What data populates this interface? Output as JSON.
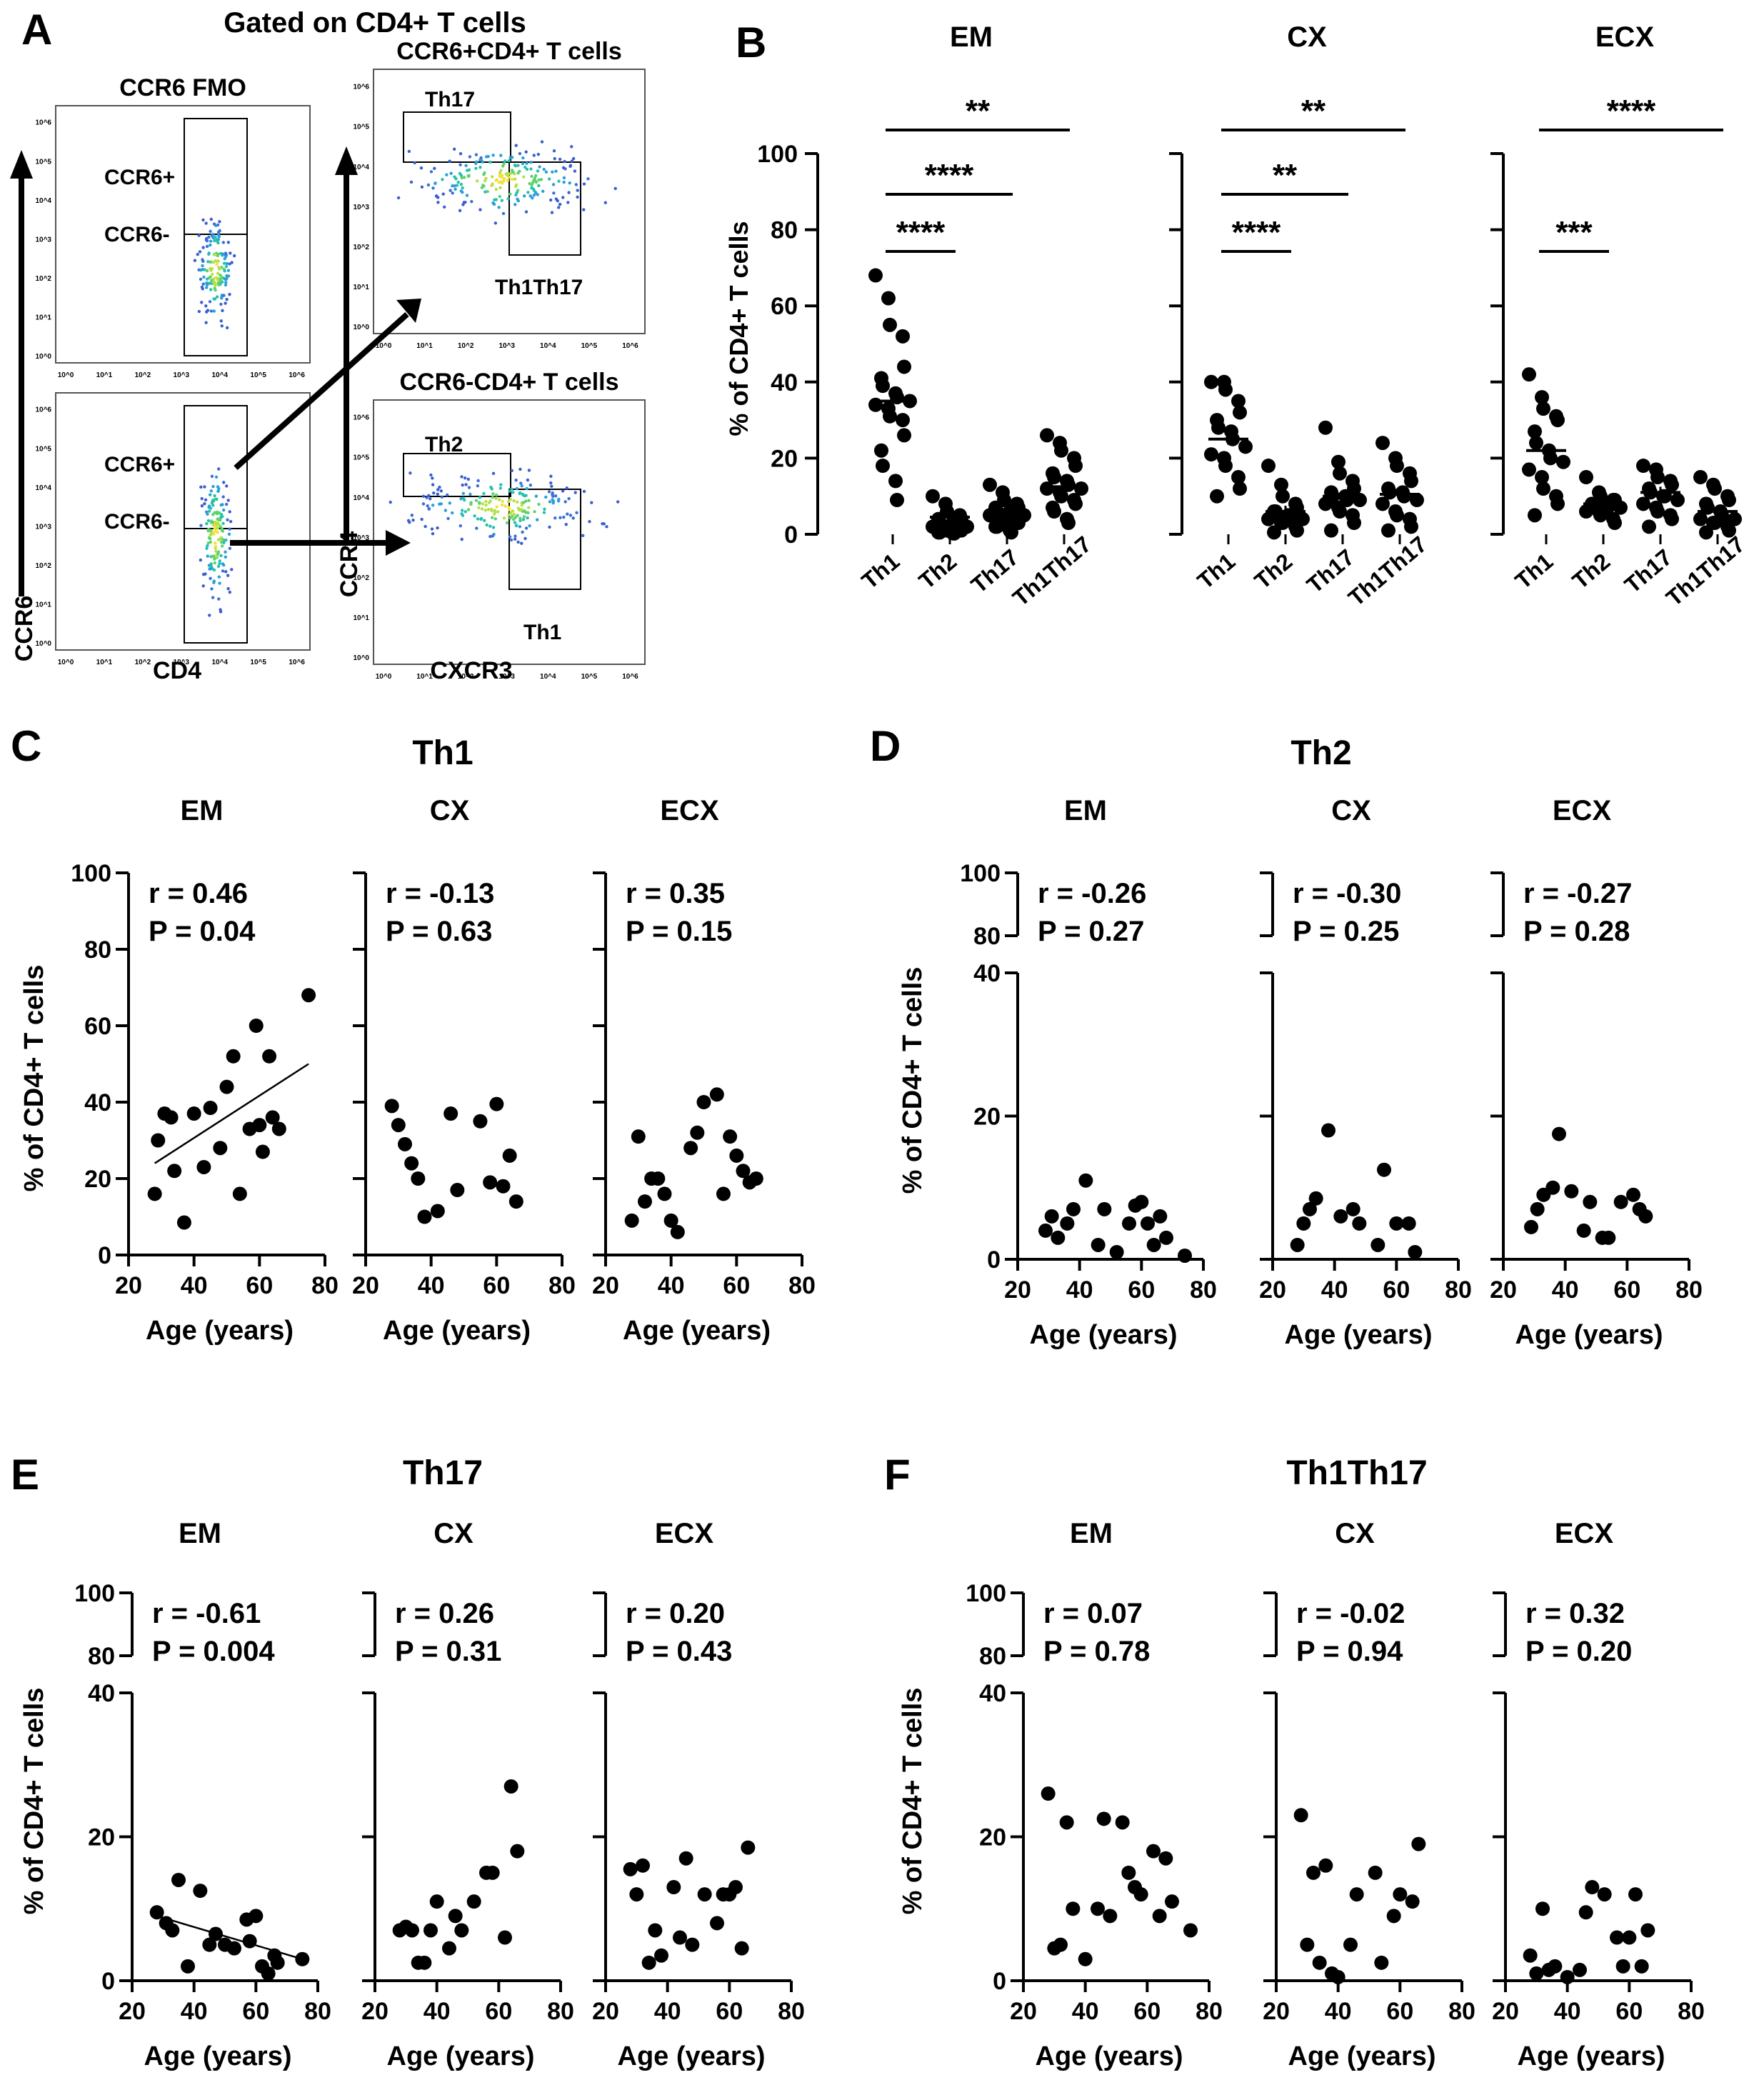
{
  "chart_data": [
    {
      "panel": "A",
      "type": "flow-cytometry",
      "title": "Gated on CD4+ T cells",
      "plots": [
        {
          "title": "CCR6 FMO",
          "x_axis": "CD4",
          "y_axis": "CCR6",
          "gates": [
            "CCR6+",
            "CCR6-"
          ]
        },
        {
          "title": "",
          "x_axis": "CD4",
          "y_axis": "CCR6",
          "gates": [
            "CCR6+",
            "CCR6-"
          ]
        },
        {
          "title": "CCR6+CD4+ T cells",
          "x_axis": "CXCR3",
          "y_axis": "CCR4",
          "gates": [
            "Th17",
            "Th1Th17"
          ]
        },
        {
          "title": "CCR6-CD4+ T cells",
          "x_axis": "CXCR3",
          "y_axis": "CCR4",
          "gates": [
            "Th2",
            "Th1"
          ]
        }
      ],
      "tick_labels": [
        "10^0",
        "10^1",
        "10^2",
        "10^3",
        "10^4",
        "10^5",
        "10^6"
      ]
    },
    {
      "panel": "B",
      "type": "scatter",
      "ylabel": "% of CD4+ T cells",
      "ylim": [
        0,
        100
      ],
      "yticks": [
        "0",
        "20",
        "40",
        "60",
        "80",
        "100"
      ],
      "categories": [
        "Th1",
        "Th2",
        "Th17",
        "Th1Th17"
      ],
      "groups": [
        {
          "name": "EM",
          "means": [
            35,
            4.5,
            6,
            12.5
          ],
          "points": [
            [
              68,
              62,
              55,
              52,
              44,
              41,
              39,
              37,
              36,
              35,
              34,
              33,
              31,
              30,
              26,
              22,
              18,
              14,
              9
            ],
            [
              10,
              8,
              6,
              5,
              4,
              4,
              3,
              3,
              3,
              2,
              2,
              2,
              1,
              1,
              1,
              0.5,
              0.5,
              0.3,
              0.2
            ],
            [
              13,
              11,
              9,
              8,
              7,
              7,
              6,
              6,
              5,
              5,
              5,
              4,
              4,
              3,
              3,
              2,
              2,
              1,
              0.5
            ],
            [
              26,
              24,
              22,
              20,
              18,
              16,
              15,
              14,
              13,
              12,
              12,
              11,
              10,
              9,
              8,
              7,
              6,
              4,
              3
            ]
          ],
          "sig": [
            {
              "from": "Th1",
              "to": "Th2",
              "label": "****"
            },
            {
              "from": "Th1",
              "to": "Th17",
              "label": "****"
            },
            {
              "from": "Th1",
              "to": "Th1Th17",
              "label": "**"
            }
          ]
        },
        {
          "name": "CX",
          "means": [
            25,
            6,
            10,
            10.5
          ],
          "points": [
            [
              40,
              40,
              38,
              35,
              32,
              30,
              28,
              27,
              25,
              23,
              21,
              20,
              18,
              15,
              12,
              10
            ],
            [
              18,
              13,
              10,
              8,
              7,
              6,
              6,
              5,
              5,
              4,
              4,
              3,
              3,
              2,
              1,
              0.5
            ],
            [
              28,
              19,
              16,
              14,
              12,
              11,
              10,
              10,
              9,
              9,
              8,
              7,
              6,
              5,
              3,
              1
            ],
            [
              24,
              20,
              18,
              16,
              14,
              12,
              11,
              11,
              10,
              9,
              8,
              6,
              5,
              4,
              2,
              1
            ]
          ],
          "sig": [
            {
              "from": "Th1",
              "to": "Th2",
              "label": "****"
            },
            {
              "from": "Th1",
              "to": "Th17",
              "label": "**"
            },
            {
              "from": "Th1",
              "to": "Th1Th17",
              "label": "**"
            }
          ]
        },
        {
          "name": "ECX",
          "means": [
            22,
            8,
            11,
            6
          ],
          "points": [
            [
              42,
              36,
              33,
              31,
              30,
              27,
              24,
              22,
              20,
              19,
              17,
              15,
              12,
              10,
              8,
              5
            ],
            [
              15,
              11,
              10,
              9,
              9,
              8,
              8,
              7,
              7,
              7,
              6,
              6,
              5,
              4,
              3
            ],
            [
              18,
              17,
              15,
              14,
              13,
              12,
              11,
              10,
              10,
              9,
              8,
              7,
              6,
              5,
              4,
              2
            ],
            [
              15,
              13,
              12,
              10,
              9,
              8,
              7,
              6,
              5,
              4,
              4,
              3,
              3,
              2,
              1,
              0.5
            ]
          ],
          "sig": [
            {
              "from": "Th1",
              "to": "Th2",
              "label": "***"
            },
            {
              "from": "Th1",
              "to": "Th1Th17",
              "label": "****"
            }
          ]
        }
      ]
    },
    {
      "panel": "C",
      "type": "scatter",
      "title": "Th1",
      "xlabel": "Age (years)",
      "ylabel": "% of CD4+ T cells",
      "xlim": [
        20,
        80
      ],
      "ylim": [
        0,
        100
      ],
      "broken_axis": false,
      "xticks": [
        "20",
        "40",
        "60",
        "80"
      ],
      "yticks": [
        "0",
        "20",
        "40",
        "60",
        "80",
        "100"
      ],
      "subplots": [
        {
          "name": "EM",
          "r_text": "r = 0.46",
          "p_text": "P = 0.04",
          "fit": [
            [
              28,
              24
            ],
            [
              75,
              50
            ]
          ],
          "x": [
            28,
            29,
            31,
            33,
            34,
            37,
            40,
            43,
            45,
            48,
            50,
            52,
            54,
            57,
            59,
            60,
            61,
            63,
            64,
            66,
            75
          ],
          "y": [
            16,
            30,
            37,
            36,
            22,
            8.5,
            37,
            23,
            38.5,
            28,
            44,
            52,
            16,
            33,
            60,
            34,
            27,
            52,
            36,
            33,
            68
          ]
        },
        {
          "name": "CX",
          "r_text": "r = -0.13",
          "p_text": "P = 0.63",
          "fit": null,
          "x": [
            28,
            30,
            32,
            34,
            36,
            38,
            42,
            46,
            48,
            55,
            58,
            60,
            62,
            64,
            66
          ],
          "y": [
            39,
            34,
            29,
            24,
            20,
            10,
            11.5,
            37,
            17,
            35,
            19,
            39.5,
            18,
            26,
            14
          ]
        },
        {
          "name": "ECX",
          "r_text": "r = 0.35",
          "p_text": "P = 0.15",
          "fit": null,
          "x": [
            28,
            30,
            32,
            34,
            36,
            38,
            40,
            42,
            46,
            48,
            50,
            54,
            56,
            58,
            60,
            62,
            64,
            66
          ],
          "y": [
            9,
            31,
            14,
            20,
            20,
            16,
            9,
            6,
            28,
            32,
            40,
            42,
            16,
            31,
            26,
            22,
            19,
            20
          ]
        }
      ]
    },
    {
      "panel": "D",
      "type": "scatter",
      "title": "Th2",
      "xlabel": "Age (years)",
      "ylabel": "% of CD4+ T cells",
      "xlim": [
        20,
        80
      ],
      "broken_axis": true,
      "xticks": [
        "20",
        "40",
        "60",
        "80"
      ],
      "yticks": [
        "0",
        "20",
        "40",
        "80",
        "100"
      ],
      "subplots": [
        {
          "name": "EM",
          "r_text": "r = -0.26",
          "p_text": "P = 0.27",
          "x": [
            29,
            31,
            33,
            36,
            38,
            42,
            46,
            48,
            52,
            56,
            58,
            60,
            62,
            64,
            66,
            68,
            74
          ],
          "y": [
            4,
            6,
            3,
            5,
            7,
            11,
            2,
            7,
            1,
            5,
            7.5,
            8,
            5,
            2,
            6,
            3,
            0.5
          ]
        },
        {
          "name": "CX",
          "r_text": "r = -0.30",
          "p_text": "P = 0.25",
          "x": [
            28,
            30,
            32,
            34,
            38,
            42,
            46,
            48,
            54,
            56,
            60,
            64,
            66
          ],
          "y": [
            2,
            5,
            7,
            8.5,
            18,
            6,
            7,
            5,
            2,
            12.5,
            5,
            5,
            1
          ]
        },
        {
          "name": "ECX",
          "r_text": "r = -0.27",
          "p_text": "P = 0.28",
          "x": [
            29,
            31,
            33,
            36,
            38,
            42,
            46,
            48,
            52,
            54,
            58,
            62,
            64,
            66
          ],
          "y": [
            4.5,
            7,
            9,
            10,
            17.5,
            9.5,
            4,
            8,
            3,
            3,
            8,
            9,
            7,
            6
          ]
        }
      ]
    },
    {
      "panel": "E",
      "type": "scatter",
      "title": "Th17",
      "xlabel": "Age (years)",
      "ylabel": "% of CD4+ T cells",
      "xlim": [
        20,
        80
      ],
      "broken_axis": true,
      "xticks": [
        "20",
        "40",
        "60",
        "80"
      ],
      "yticks": [
        "0",
        "20",
        "40",
        "80",
        "100"
      ],
      "subplots": [
        {
          "name": "EM",
          "r_text": "r = -0.61",
          "p_text": "P = 0.004",
          "fit": [
            [
              28,
              9
            ],
            [
              75,
              3
            ]
          ],
          "x": [
            28,
            31,
            33,
            35,
            38,
            42,
            45,
            47,
            50,
            53,
            57,
            58,
            60,
            62,
            64,
            66,
            67,
            75
          ],
          "y": [
            9.5,
            8,
            7,
            14,
            2,
            12.5,
            5,
            6.5,
            5,
            4.5,
            8.5,
            5.5,
            9,
            2,
            1,
            3.5,
            2.5,
            3
          ]
        },
        {
          "name": "CX",
          "r_text": "r = 0.26",
          "p_text": "P = 0.31",
          "x": [
            28,
            30,
            32,
            34,
            36,
            38,
            40,
            44,
            46,
            48,
            52,
            56,
            58,
            62,
            64,
            66
          ],
          "y": [
            7,
            7.5,
            7,
            2.5,
            2.5,
            7,
            11,
            4.5,
            9,
            7,
            11,
            15,
            15,
            6,
            27,
            18
          ]
        },
        {
          "name": "ECX",
          "r_text": "r = 0.20",
          "p_text": "P = 0.43",
          "x": [
            28,
            30,
            32,
            34,
            36,
            38,
            42,
            44,
            46,
            48,
            52,
            56,
            58,
            60,
            62,
            64,
            66
          ],
          "y": [
            15.5,
            12,
            16,
            2.5,
            7,
            3.5,
            13,
            6,
            17,
            5,
            12,
            8,
            12,
            12,
            13,
            4.5,
            18.5
          ]
        }
      ]
    },
    {
      "panel": "F",
      "type": "scatter",
      "title": "Th1Th17",
      "xlabel": "Age (years)",
      "ylabel": "% of CD4+ T cells",
      "xlim": [
        20,
        80
      ],
      "broken_axis": true,
      "xticks": [
        "20",
        "40",
        "60",
        "80"
      ],
      "yticks": [
        "0",
        "20",
        "40",
        "80",
        "100"
      ],
      "subplots": [
        {
          "name": "EM",
          "r_text": "r = 0.07",
          "p_text": "P = 0.78",
          "x": [
            28,
            30,
            32,
            34,
            36,
            40,
            44,
            46,
            48,
            52,
            54,
            56,
            58,
            62,
            64,
            66,
            68,
            74
          ],
          "y": [
            26,
            4.5,
            5,
            22,
            10,
            3,
            10,
            22.5,
            9,
            22,
            15,
            13,
            12,
            18,
            9,
            17,
            11,
            7
          ]
        },
        {
          "name": "CX",
          "r_text": "r = -0.02",
          "p_text": "P = 0.94",
          "x": [
            28,
            30,
            32,
            34,
            36,
            38,
            40,
            44,
            46,
            52,
            54,
            58,
            60,
            64,
            66
          ],
          "y": [
            23,
            5,
            15,
            2.5,
            16,
            1,
            0.5,
            5,
            12,
            15,
            2.5,
            9,
            12,
            11,
            19
          ]
        },
        {
          "name": "ECX",
          "r_text": "r = 0.32",
          "p_text": "P = 0.20",
          "x": [
            28,
            30,
            32,
            34,
            36,
            40,
            44,
            46,
            48,
            52,
            56,
            58,
            60,
            62,
            64,
            66
          ],
          "y": [
            3.5,
            1,
            10,
            1.5,
            2,
            0.5,
            1.5,
            9.5,
            13,
            12,
            6,
            2,
            6,
            12,
            2,
            7
          ]
        }
      ]
    }
  ]
}
